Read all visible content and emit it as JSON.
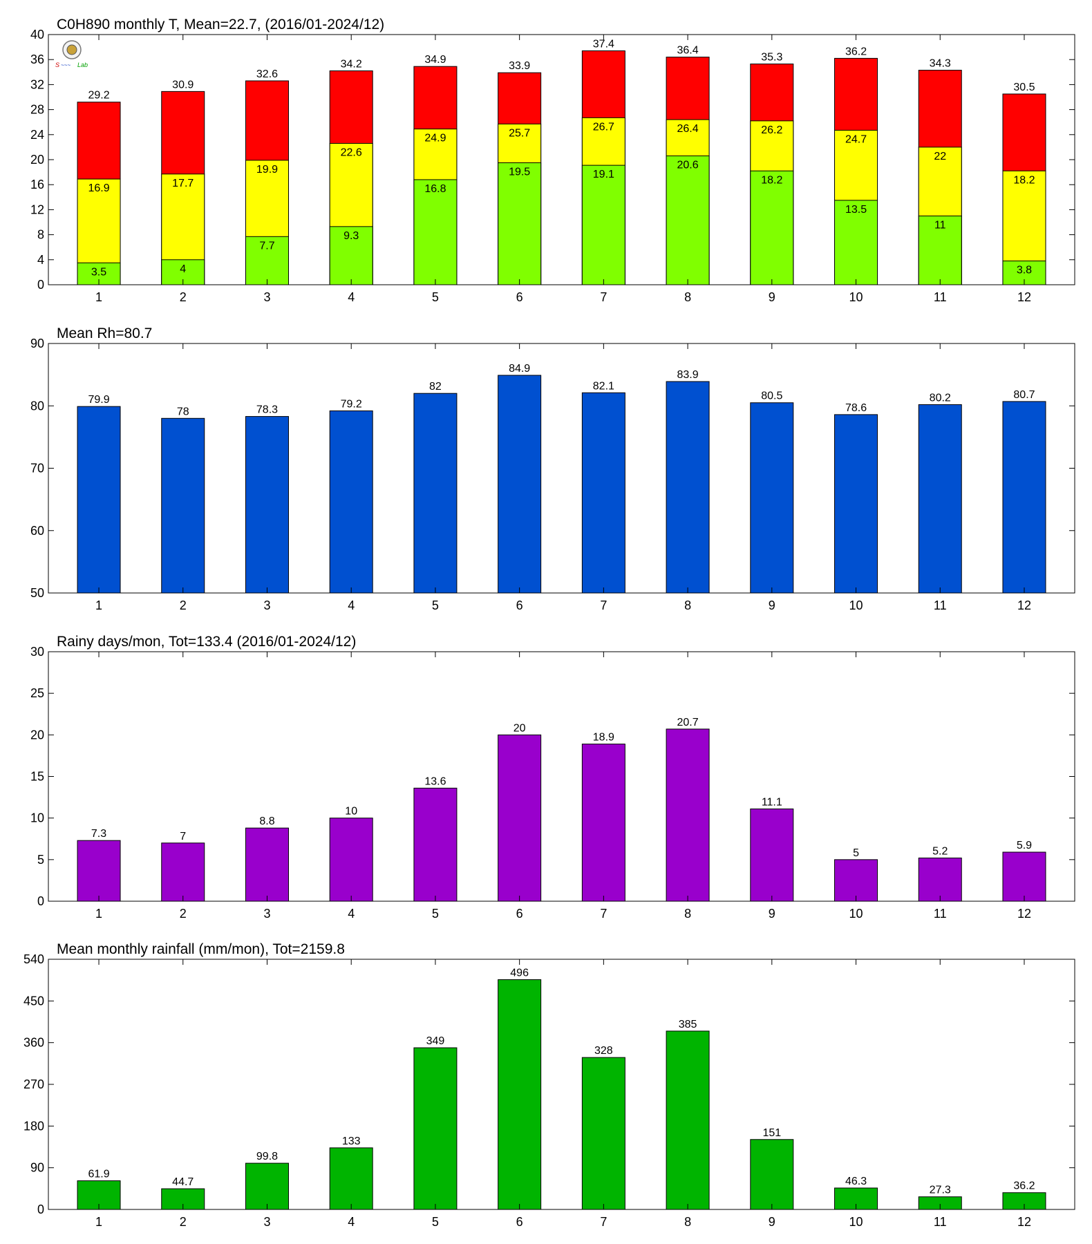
{
  "months": [
    "1",
    "2",
    "3",
    "4",
    "5",
    "6",
    "7",
    "8",
    "9",
    "10",
    "11",
    "12"
  ],
  "logo": {
    "text": "Lab"
  },
  "chart_data": [
    {
      "id": "temperature",
      "type": "bar",
      "title": "C0H890 monthly T, Mean=22.7, (2016/01-2024/12)",
      "xlabel": "",
      "ylabel": "",
      "ylim": [
        0,
        40
      ],
      "yticks": [
        0,
        4,
        8,
        12,
        16,
        20,
        24,
        28,
        32,
        36,
        40
      ],
      "categories": [
        "1",
        "2",
        "3",
        "4",
        "5",
        "6",
        "7",
        "8",
        "9",
        "10",
        "11",
        "12"
      ],
      "stacked_levels": true,
      "series": [
        {
          "role": "max",
          "color": "#ff0000",
          "values": [
            29.2,
            30.9,
            32.6,
            34.2,
            34.9,
            33.9,
            37.4,
            36.4,
            35.3,
            36.2,
            34.3,
            30.5
          ]
        },
        {
          "role": "mean",
          "color": "#ffff00",
          "values": [
            16.9,
            17.7,
            19.9,
            22.6,
            24.9,
            25.7,
            26.7,
            26.4,
            26.2,
            24.7,
            22,
            18.2
          ]
        },
        {
          "role": "min",
          "color": "#80ff00",
          "values": [
            3.5,
            4,
            7.7,
            9.3,
            16.8,
            19.5,
            19.1,
            20.6,
            18.2,
            13.5,
            11,
            3.8
          ]
        }
      ],
      "grid": false
    },
    {
      "id": "humidity",
      "type": "bar",
      "title": "Mean Rh=80.7",
      "xlabel": "",
      "ylabel": "",
      "ylim": [
        50,
        90
      ],
      "yticks": [
        50,
        60,
        70,
        80,
        90
      ],
      "categories": [
        "1",
        "2",
        "3",
        "4",
        "5",
        "6",
        "7",
        "8",
        "9",
        "10",
        "11",
        "12"
      ],
      "color": "#0050d0",
      "values": [
        79.9,
        78,
        78.3,
        79.2,
        82,
        84.9,
        82.1,
        83.9,
        80.5,
        78.6,
        80.2,
        80.7
      ],
      "grid": false
    },
    {
      "id": "rainy_days",
      "type": "bar",
      "title": "Rainy days/mon, Tot=133.4 (2016/01-2024/12)",
      "xlabel": "",
      "ylabel": "",
      "ylim": [
        0,
        30
      ],
      "yticks": [
        0,
        5,
        10,
        15,
        20,
        25,
        30
      ],
      "categories": [
        "1",
        "2",
        "3",
        "4",
        "5",
        "6",
        "7",
        "8",
        "9",
        "10",
        "11",
        "12"
      ],
      "color": "#9900cc",
      "values": [
        7.3,
        7,
        8.8,
        10,
        13.6,
        20,
        18.9,
        20.7,
        11.1,
        5,
        5.2,
        5.9
      ],
      "grid": false
    },
    {
      "id": "rainfall",
      "type": "bar",
      "title": "Mean monthly rainfall (mm/mon), Tot=2159.8",
      "xlabel": "",
      "ylabel": "",
      "ylim": [
        0,
        540
      ],
      "yticks": [
        0,
        90,
        180,
        270,
        360,
        450,
        540
      ],
      "categories": [
        "1",
        "2",
        "3",
        "4",
        "5",
        "6",
        "7",
        "8",
        "9",
        "10",
        "11",
        "12"
      ],
      "color": "#00b400",
      "values": [
        61.9,
        44.7,
        99.8,
        133,
        349,
        496,
        328,
        385,
        151,
        46.3,
        27.3,
        36.2
      ],
      "grid": false
    }
  ]
}
